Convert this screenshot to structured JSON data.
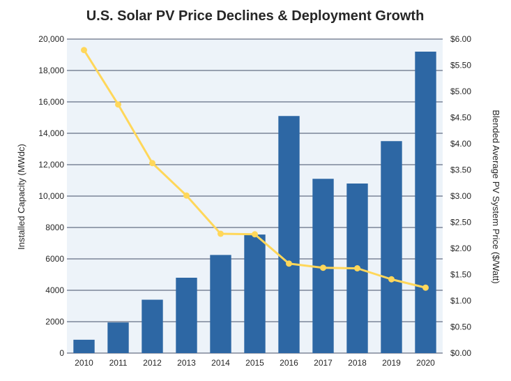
{
  "colors": {
    "bar": "#2d67a4",
    "line": "#ffd75a",
    "plot_background": "#edf3f9",
    "grid": "#2f3a57",
    "text": "#262626"
  },
  "chart_data": {
    "type": "bar",
    "title": "U.S. Solar PV Price Declines & Deployment Growth",
    "categories": [
      "2010",
      "2011",
      "2012",
      "2013",
      "2014",
      "2015",
      "2016",
      "2017",
      "2018",
      "2019",
      "2020"
    ],
    "series": [
      {
        "type": "bar",
        "axis": "left",
        "values": [
          850,
          1950,
          3400,
          4800,
          6250,
          7550,
          15100,
          11100,
          10800,
          13500,
          19200
        ]
      },
      {
        "type": "line",
        "axis": "right",
        "values": [
          5.79,
          4.75,
          3.63,
          3.01,
          2.28,
          2.27,
          1.71,
          1.63,
          1.62,
          1.41,
          1.25
        ]
      }
    ],
    "ylabel": "Installed Capacity (MWdc)",
    "ylim": [
      0,
      20000
    ],
    "yticks": [
      "0",
      "2000",
      "4000",
      "6000",
      "8000",
      "10,000",
      "12,000",
      "14,000",
      "16,000",
      "18,000",
      "20,000"
    ],
    "y2label": "Blended Average PV System Price ($/Watt)",
    "y2lim": [
      0,
      6
    ],
    "y2ticks": [
      "$0.00",
      "$0.50",
      "$1.00",
      "$1.50",
      "$2.00",
      "$2.50",
      "$3.00",
      "$3.50",
      "$4.00",
      "$4.50",
      "$5.00",
      "$5.50",
      "$6.00"
    ],
    "grid": true,
    "legend": "none"
  }
}
